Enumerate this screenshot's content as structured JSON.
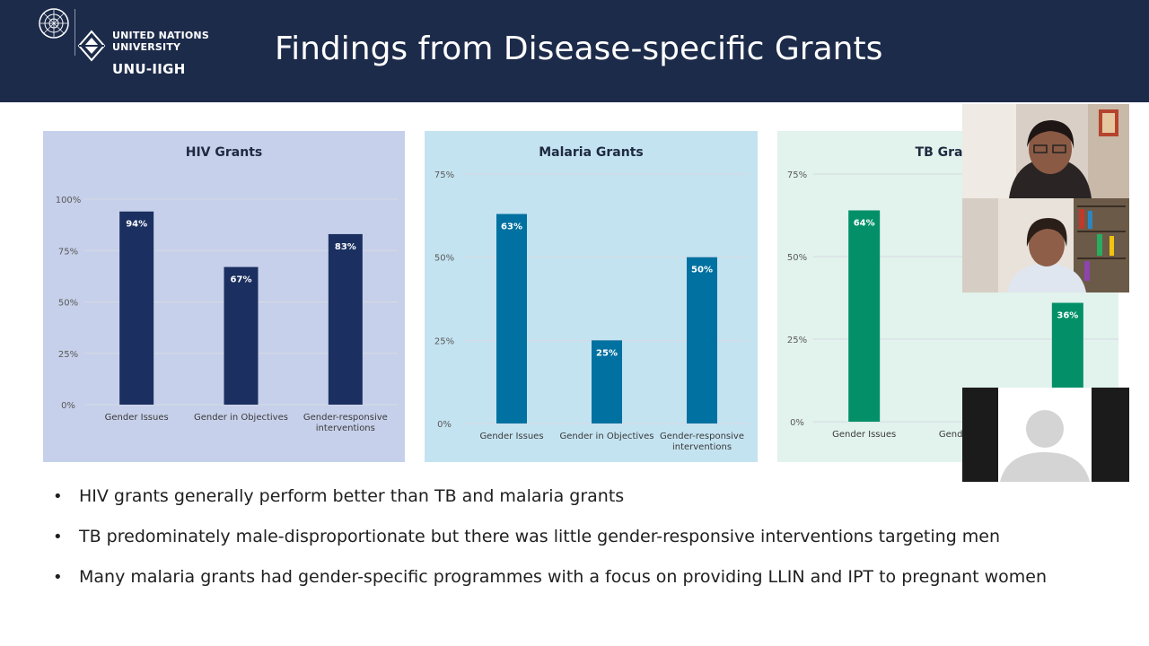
{
  "header": {
    "logo": {
      "line1": "UNITED NATIONS",
      "line2": "UNIVERSITY",
      "line3": "UNU-IIGH"
    },
    "title": "Findings from Disease-specific Grants"
  },
  "colors": {
    "header_bg": "#1d2b4a",
    "hiv_bar": "#1b3060",
    "malaria_bar": "#0071a0",
    "tb_bar": "#039068"
  },
  "chart_data": [
    {
      "type": "bar",
      "title": "HIV Grants",
      "categories": [
        "Gender Issues",
        "Gender in Objectives",
        "Gender-responsive interventions"
      ],
      "series": [
        {
          "values": [
            94,
            67,
            83
          ],
          "labels": [
            "94%",
            "67%",
            "83%"
          ]
        }
      ],
      "yticks": [
        "0%",
        "25%",
        "50%",
        "75%",
        "100%"
      ],
      "ylim": [
        0,
        100
      ],
      "grid": true
    },
    {
      "type": "bar",
      "title": "Malaria Grants",
      "categories": [
        "Gender Issues",
        "Gender in Objectives",
        "Gender-responsive interventions"
      ],
      "series": [
        {
          "values": [
            63,
            25,
            50
          ],
          "labels": [
            "63%",
            "25%",
            "50%"
          ]
        }
      ],
      "yticks": [
        "0%",
        "25%",
        "50%",
        "75%"
      ],
      "ylim": [
        0,
        75
      ],
      "grid": true
    },
    {
      "type": "bar",
      "title": "TB Gra",
      "categories": [
        "Gender Issues",
        "Gender in O",
        ""
      ],
      "series": [
        {
          "values": [
            64,
            36
          ],
          "labels": [
            "64%",
            "36%"
          ],
          "positions": [
            0,
            2
          ]
        }
      ],
      "yticks": [
        "0%",
        "25%",
        "50%",
        "75%"
      ],
      "ylim": [
        0,
        75
      ],
      "grid": true
    }
  ],
  "bullets": [
    "HIV grants generally perform better than TB and malaria grants",
    "TB predominately male-disproportionate but there was  little gender-responsive interventions targeting men",
    "Many malaria grants had gender-specific programmes with a focus on providing LLIN and IPT to pregnant women"
  ],
  "video_tiles": [
    {
      "kind": "camera",
      "icon": "participant-video-icon"
    },
    {
      "kind": "camera",
      "icon": "participant-video-icon"
    },
    {
      "kind": "avatar",
      "icon": "default-avatar-icon"
    }
  ]
}
